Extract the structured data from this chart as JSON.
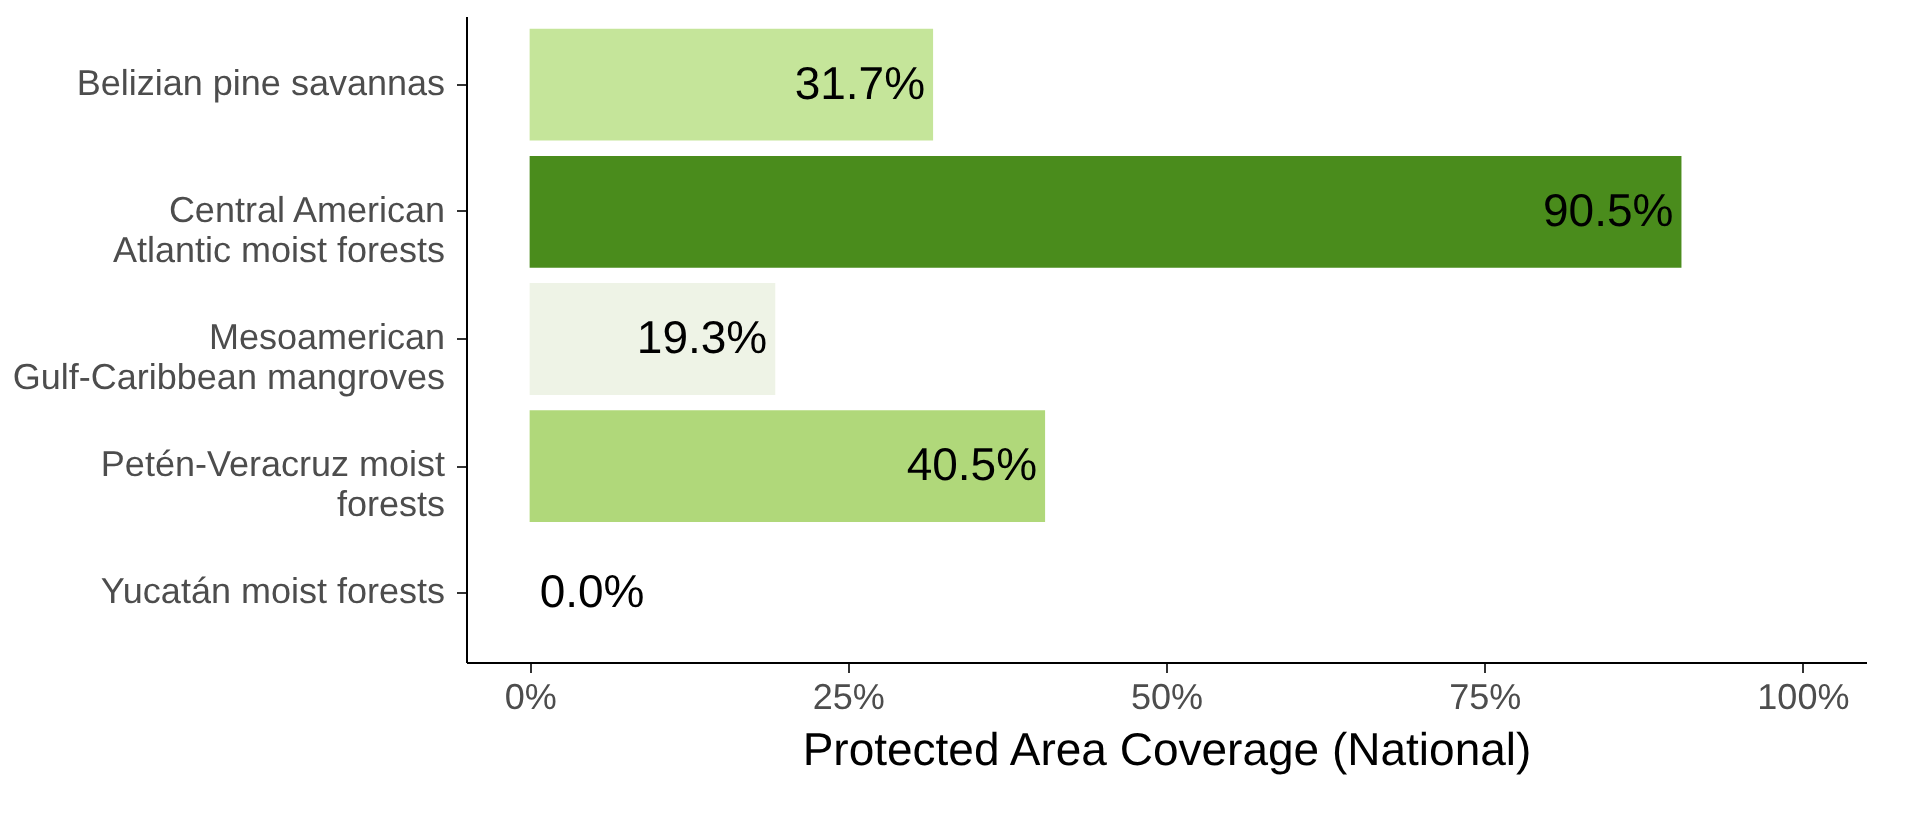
{
  "chart_data": {
    "type": "bar",
    "orientation": "horizontal",
    "xlabel": "Protected Area Coverage (National)",
    "categories": [
      "Belizian pine savannas",
      "Central American\nAtlantic moist forests",
      "Mesoamerican\nGulf-Caribbean mangroves",
      "Petén-Veracruz moist\nforests",
      "Yucatán moist forests"
    ],
    "values": [
      31.7,
      90.5,
      19.3,
      40.5,
      0.0
    ],
    "colors": [
      "#c5e59a",
      "#4a8c1c",
      "#eef3e6",
      "#b0d87a",
      "#ffffff"
    ],
    "value_labels": [
      "31.7%",
      "90.5%",
      "19.3%",
      "40.5%",
      "0.0%"
    ],
    "xlim": [
      -5,
      105
    ],
    "xticks": [
      {
        "value": 0,
        "label": "0%"
      },
      {
        "value": 25,
        "label": "25%"
      },
      {
        "value": 50,
        "label": "50%"
      },
      {
        "value": 75,
        "label": "75%"
      },
      {
        "value": 100,
        "label": "100%"
      }
    ],
    "grid": false
  }
}
